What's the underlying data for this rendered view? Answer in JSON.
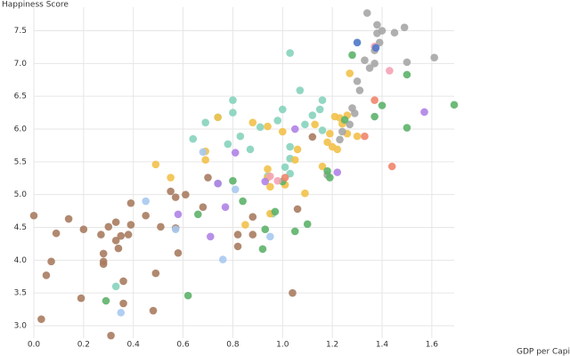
{
  "chart_data": {
    "type": "scatter",
    "y_label": "Happiness Score",
    "x_label": "GDP per Capita →",
    "xlim": [
      0,
      1.69
    ],
    "ylim": [
      2.81,
      7.86
    ],
    "xticks": [
      {
        "value": 0,
        "label": "0.0"
      },
      0.2,
      0.4,
      0.6,
      0.8,
      {
        "value": 1,
        "label": "1.0"
      },
      1.2,
      1.4,
      1.6
    ],
    "yticks": [
      {
        "value": 3,
        "label": "3.0"
      },
      3.5,
      {
        "value": 4,
        "label": "4.0"
      },
      4.5,
      {
        "value": 5,
        "label": "5.0"
      },
      5.5,
      {
        "value": 6,
        "label": "6.0"
      },
      6.5,
      {
        "value": 7,
        "label": "7.0"
      },
      7.5
    ],
    "grid": true,
    "series": [
      {
        "color": "#a97c60",
        "x": [
          0,
          0.05,
          0.07,
          0.09,
          0.14,
          0.2,
          0.19,
          0.03,
          0.27,
          0.28,
          0.28,
          0.28,
          0.3,
          0.33,
          0.33,
          0.35,
          0.34,
          0.36,
          0.36,
          0.31,
          0.38,
          0.39,
          0.39,
          0.45,
          0.49,
          0.48,
          0.51,
          0.55,
          0.57,
          0.58,
          0.61,
          0.68,
          0.7,
          0.82,
          0.82,
          0.88,
          0.88,
          1.04,
          1.06,
          1.12,
          0.57
        ],
        "values": [
          4.68,
          3.77,
          3.98,
          4.41,
          4.63,
          4.47,
          3.42,
          3.1,
          4.39,
          4.1,
          3.98,
          3.94,
          4.51,
          4.58,
          4.3,
          4.37,
          4.18,
          3.68,
          3.34,
          2.85,
          4.39,
          4.54,
          4.87,
          4.68,
          3.8,
          3.23,
          4.51,
          5.05,
          4.96,
          4.11,
          5.0,
          4.81,
          5.26,
          4.39,
          4.21,
          4.66,
          4.39,
          3.5,
          4.78,
          5.88,
          4.49
        ]
      },
      {
        "color": "#86d3bd",
        "x": [
          0.33,
          0.64,
          0.69,
          0.74,
          0.78,
          0.8,
          0.8,
          0.83,
          0.87,
          0.91,
          0.94,
          0.96,
          0.98,
          1.0,
          1.01,
          1.03,
          1.03,
          1.07,
          1.09,
          1.12,
          1.15,
          1.16,
          1.16,
          1.03,
          1.03,
          0.74
        ],
        "values": [
          3.6,
          5.85,
          6.1,
          6.18,
          5.77,
          6.25,
          6.44,
          5.89,
          5.69,
          6.03,
          5.28,
          4.71,
          6.13,
          6.3,
          5.42,
          5.73,
          7.16,
          6.59,
          6.07,
          6.21,
          6.3,
          6.44,
          5.98,
          5.55,
          5.32,
          5.17
        ]
      },
      {
        "color": "#f2c14a",
        "x": [
          0.49,
          0.55,
          0.69,
          0.69,
          0.74,
          0.85,
          0.88,
          0.94,
          0.94,
          0.95,
          0.94,
          1.0,
          1.01,
          1.05,
          1.06,
          1.09,
          1.13,
          1.16,
          1.18,
          1.19,
          1.2,
          1.21,
          1.22,
          1.23,
          1.24,
          1.26,
          1.26,
          1.27,
          1.3,
          0.95
        ],
        "values": [
          5.46,
          5.26,
          5.53,
          5.66,
          6.18,
          4.54,
          6.1,
          6.04,
          5.39,
          4.71,
          5.26,
          5.96,
          5.15,
          5.53,
          5.69,
          5.02,
          6.07,
          5.43,
          5.8,
          5.93,
          5.73,
          6.19,
          5.69,
          6.17,
          6.08,
          6.21,
          5.93,
          6.85,
          5.89,
          5.12
        ]
      },
      {
        "color": "#a6a6a6",
        "x": [
          1.18,
          1.23,
          1.24,
          1.27,
          1.28,
          1.3,
          1.29,
          1.31,
          1.33,
          1.35,
          1.34,
          1.37,
          1.38,
          1.38,
          1.39,
          1.4,
          1.45,
          1.49,
          1.5,
          1.61,
          1.37
        ],
        "values": [
          5.3,
          5.84,
          5.96,
          6.07,
          6.32,
          6.73,
          6.24,
          6.59,
          7.05,
          6.93,
          7.77,
          7.0,
          7.59,
          7.46,
          7.32,
          7.5,
          7.47,
          7.55,
          7.02,
          7.09,
          7.2
        ]
      },
      {
        "color": "#5db36a",
        "x": [
          0.29,
          0.62,
          0.66,
          0.8,
          0.84,
          0.92,
          0.93,
          0.97,
          1.0,
          1.05,
          1.1,
          1.18,
          1.19,
          1.25,
          1.28,
          1.37,
          1.4,
          1.5,
          1.5,
          1.69
        ],
        "values": [
          3.38,
          3.46,
          4.7,
          5.21,
          4.9,
          4.17,
          4.47,
          4.74,
          5.2,
          4.44,
          4.55,
          5.36,
          5.26,
          6.14,
          7.13,
          6.19,
          6.36,
          6.83,
          6.02,
          6.37
        ]
      },
      {
        "color": "#b083e6",
        "x": [
          0.58,
          0.71,
          0.74,
          0.77,
          0.81,
          0.93,
          1.05,
          1.22,
          1.57
        ],
        "values": [
          4.7,
          4.36,
          5.17,
          4.81,
          5.64,
          5.2,
          6.0,
          5.34,
          6.26
        ]
      },
      {
        "color": "#a9c9ef",
        "x": [
          0.45,
          0.35,
          0.57,
          0.68,
          0.76,
          0.81,
          0.95
        ],
        "values": [
          4.9,
          3.2,
          4.47,
          5.65,
          4.01,
          5.08,
          4.36
        ]
      },
      {
        "color": "#f5a3b5",
        "x": [
          0.95,
          0.98,
          1.37,
          1.43
        ],
        "values": [
          5.28,
          5.21,
          7.26,
          6.89
        ]
      },
      {
        "color": "#f0856a",
        "x": [
          1.01,
          1.33,
          1.37,
          1.44
        ],
        "values": [
          5.26,
          5.89,
          6.44,
          5.43
        ]
      },
      {
        "color": "#4f78c8",
        "x": [
          1.3,
          1.375
        ],
        "values": [
          7.32,
          7.24
        ]
      }
    ]
  }
}
